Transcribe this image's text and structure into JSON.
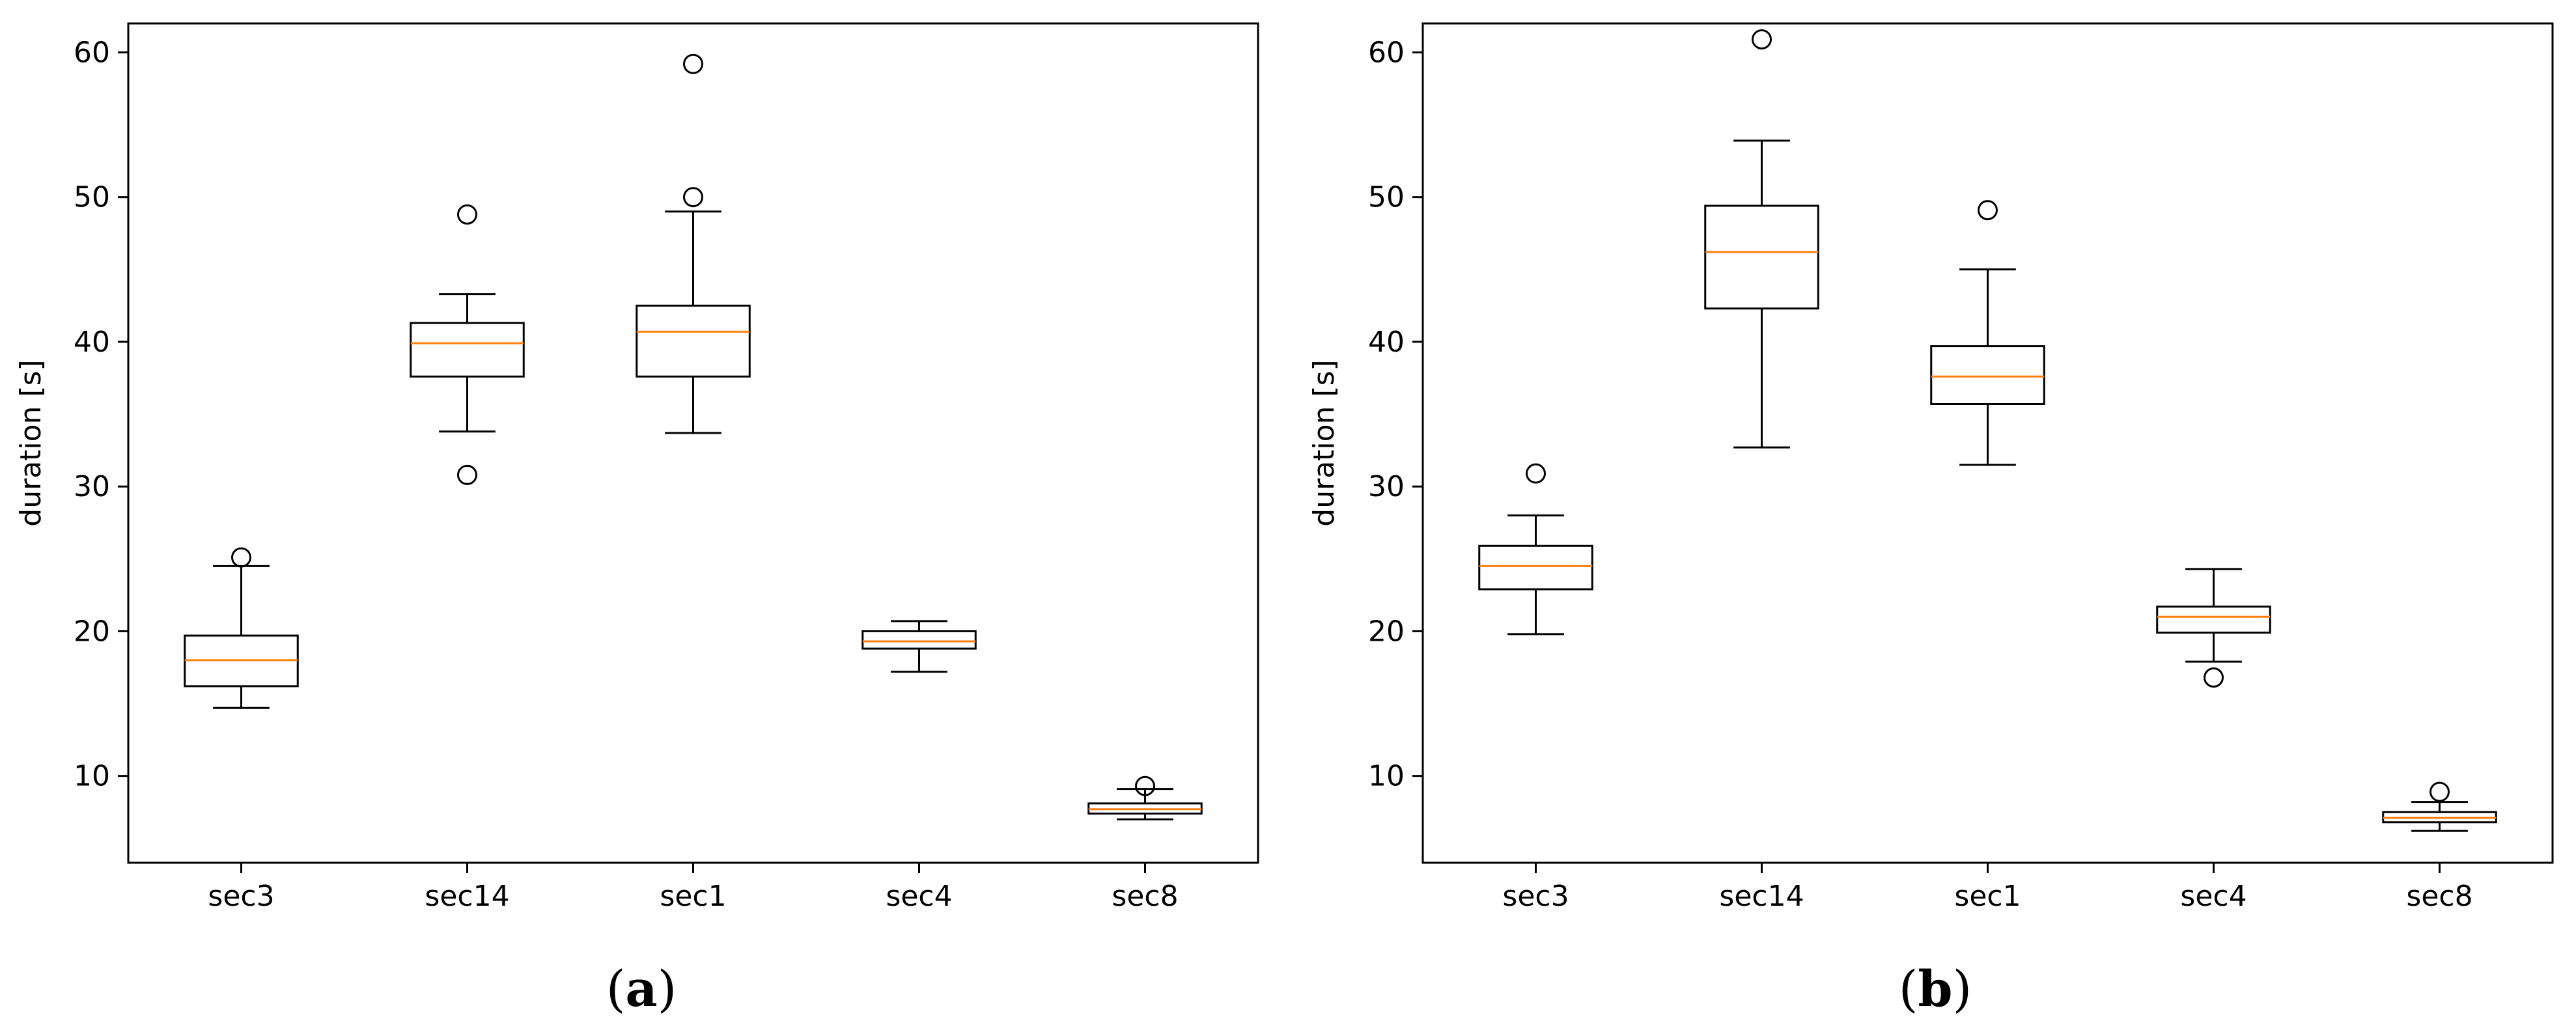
{
  "colors": {
    "median": "#ff7f0e",
    "line": "#000000",
    "background": "#ffffff"
  },
  "chart_data": [
    {
      "type": "boxplot",
      "caption": "(a)",
      "caption_letter": "a",
      "ylabel": "duration [s]",
      "xlabel": "",
      "ylim": [
        4,
        62
      ],
      "yticks": [
        10,
        20,
        30,
        40,
        50,
        60
      ],
      "categories": [
        "sec3",
        "sec14",
        "sec1",
        "sec4",
        "sec8"
      ],
      "boxes": [
        {
          "name": "sec3",
          "whisker_low": 14.7,
          "q1": 16.2,
          "median": 18.0,
          "q3": 19.7,
          "whisker_high": 24.5,
          "fliers": [
            25.1
          ]
        },
        {
          "name": "sec14",
          "whisker_low": 33.8,
          "q1": 37.6,
          "median": 39.9,
          "q3": 41.3,
          "whisker_high": 43.3,
          "fliers": [
            30.8,
            48.8
          ]
        },
        {
          "name": "sec1",
          "whisker_low": 33.7,
          "q1": 37.6,
          "median": 40.7,
          "q3": 42.5,
          "whisker_high": 49.0,
          "fliers": [
            50.0,
            59.2
          ]
        },
        {
          "name": "sec4",
          "whisker_low": 17.2,
          "q1": 18.8,
          "median": 19.3,
          "q3": 20.0,
          "whisker_high": 20.7,
          "fliers": []
        },
        {
          "name": "sec8",
          "whisker_low": 7.0,
          "q1": 7.4,
          "median": 7.7,
          "q3": 8.1,
          "whisker_high": 9.1,
          "fliers": [
            9.3
          ]
        }
      ]
    },
    {
      "type": "boxplot",
      "caption": "(b)",
      "caption_letter": "b",
      "ylabel": "duration [s]",
      "xlabel": "",
      "ylim": [
        4,
        62
      ],
      "yticks": [
        10,
        20,
        30,
        40,
        50,
        60
      ],
      "categories": [
        "sec3",
        "sec14",
        "sec1",
        "sec4",
        "sec8"
      ],
      "boxes": [
        {
          "name": "sec3",
          "whisker_low": 19.8,
          "q1": 22.9,
          "median": 24.5,
          "q3": 25.9,
          "whisker_high": 28.0,
          "fliers": [
            30.9
          ]
        },
        {
          "name": "sec14",
          "whisker_low": 32.7,
          "q1": 42.3,
          "median": 46.2,
          "q3": 49.4,
          "whisker_high": 53.9,
          "fliers": [
            60.9
          ]
        },
        {
          "name": "sec1",
          "whisker_low": 31.5,
          "q1": 35.7,
          "median": 37.6,
          "q3": 39.7,
          "whisker_high": 45.0,
          "fliers": [
            49.1
          ]
        },
        {
          "name": "sec4",
          "whisker_low": 17.9,
          "q1": 19.9,
          "median": 21.0,
          "q3": 21.7,
          "whisker_high": 24.3,
          "fliers": [
            16.8
          ]
        },
        {
          "name": "sec8",
          "whisker_low": 6.2,
          "q1": 6.8,
          "median": 7.1,
          "q3": 7.5,
          "whisker_high": 8.2,
          "fliers": [
            8.9
          ]
        }
      ]
    }
  ]
}
